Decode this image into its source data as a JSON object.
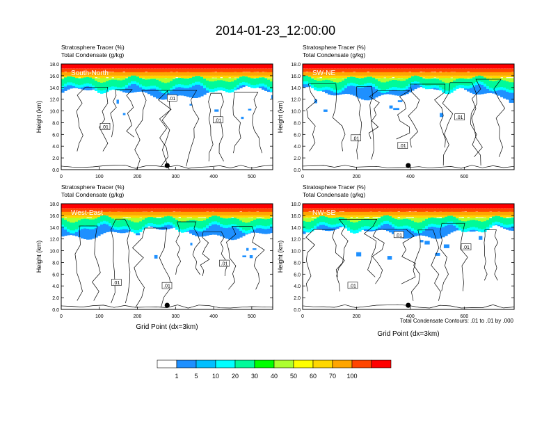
{
  "title": "2014-01-23_12:00:00",
  "colors": {
    "bins": [
      "#ffffff",
      "#1e90ff",
      "#00bfff",
      "#00ffff",
      "#00fa9a",
      "#00ff00",
      "#adff2f",
      "#ffff00",
      "#ffd700",
      "#ffa500",
      "#ff4500",
      "#ff0000"
    ]
  },
  "icons": {
    "marker": "filled-circle-marker"
  },
  "colorbar": {
    "labels": [
      "1",
      "5",
      "10",
      "20",
      "30",
      "40",
      "50",
      "60",
      "70",
      "100"
    ]
  },
  "contour_note": "Total Condensate Contours: .01 to .01 by .000",
  "chart_data": [
    {
      "type": "heatmap",
      "panel": "South-North",
      "title": "Stratosphere Tracer   (%)",
      "subtitle": "Total Condensate   (g/kg)",
      "ylabel": "Height (km)",
      "xlabel": "",
      "xlim": [
        0,
        555
      ],
      "ylim": [
        0,
        18
      ],
      "xticks": [
        "0",
        "100",
        "200",
        "300",
        "400",
        "500"
      ],
      "yticks": [
        "0.0",
        "2.0",
        "4.0",
        "6.0",
        "8.0",
        "10.0",
        "12.0",
        "14.0",
        "16.0",
        "18.0"
      ],
      "contour_label": ".01",
      "marker_x": 278
    },
    {
      "type": "heatmap",
      "panel": "SW-NE",
      "title": "Stratosphere Tracer   (%)",
      "subtitle": "Total Condensate   (g/kg)",
      "ylabel": "Height (km)",
      "xlabel": "",
      "xlim": [
        0,
        785
      ],
      "ylim": [
        0,
        18
      ],
      "xticks": [
        "0",
        "200",
        "400",
        "600"
      ],
      "yticks": [
        "0.0",
        "2.0",
        "4.0",
        "6.0",
        "8.0",
        "10.0",
        "12.0",
        "14.0",
        "16.0",
        "18.0"
      ],
      "contour_label": ".01",
      "marker_x": 392
    },
    {
      "type": "heatmap",
      "panel": "West-East",
      "title": "Stratosphere Tracer   (%)",
      "subtitle": "Total Condensate   (g/kg)",
      "ylabel": "Height (km)",
      "xlabel": "Grid Point (dx=3km)",
      "xlim": [
        0,
        555
      ],
      "ylim": [
        0,
        18
      ],
      "xticks": [
        "0",
        "100",
        "200",
        "300",
        "400",
        "500"
      ],
      "yticks": [
        "0.0",
        "2.0",
        "4.0",
        "6.0",
        "8.0",
        "10.0",
        "12.0",
        "14.0",
        "16.0",
        "18.0"
      ],
      "contour_label": ".01",
      "marker_x": 278
    },
    {
      "type": "heatmap",
      "panel": "NW-SE",
      "title": "Stratosphere Tracer   (%)",
      "subtitle": "Total Condensate   (g/kg)",
      "ylabel": "Height (km)",
      "xlabel": "Grid Point (dx=3km)",
      "xlim": [
        0,
        785
      ],
      "ylim": [
        0,
        18
      ],
      "xticks": [
        "0",
        "200",
        "400",
        "600"
      ],
      "yticks": [
        "0.0",
        "2.0",
        "4.0",
        "6.0",
        "8.0",
        "10.0",
        "12.0",
        "14.0",
        "16.0",
        "18.0"
      ],
      "contour_label": ".01",
      "marker_x": 392
    }
  ]
}
